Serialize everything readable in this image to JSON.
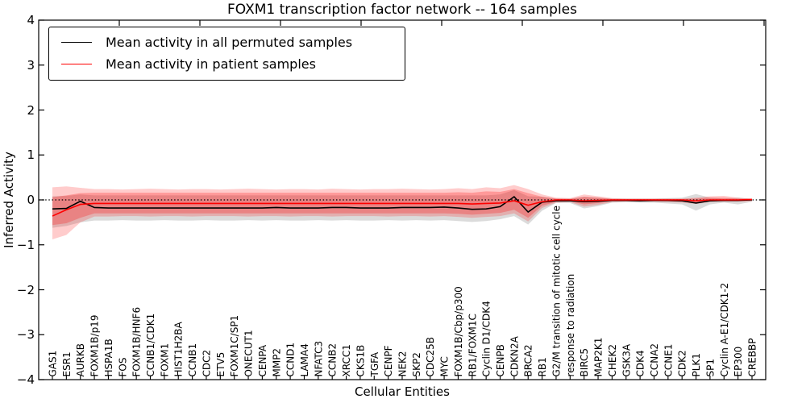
{
  "figure": {
    "title": "FOXM1 transcription factor network -- 164 samples",
    "xlabel": "Cellular Entities",
    "ylabel": "Inferred Activity"
  },
  "legend": {
    "items": [
      {
        "label": "Mean activity in all permuted samples",
        "color": "#000000"
      },
      {
        "label": "Mean activity in patient samples",
        "color": "#ff0000"
      }
    ]
  },
  "chart_data": {
    "type": "line",
    "title": "FOXM1 transcription factor network -- 164 samples",
    "xlabel": "Cellular Entities",
    "ylabel": "Inferred Activity",
    "ylim": [
      -4,
      4
    ],
    "grid": false,
    "legend_position": "upper left",
    "zero_line": {
      "y": 0,
      "style": "dotted",
      "color": "#000000"
    },
    "yticks": {
      "values": [
        4,
        3,
        2,
        1,
        0,
        -1,
        -2,
        -3,
        -4
      ],
      "labels": [
        "4",
        "3",
        "2",
        "1",
        "0",
        "−1",
        "−2",
        "−3",
        "−4"
      ]
    },
    "categories": [
      "GAS1",
      "ESR1",
      "AURKB",
      "FOXM1B/p19",
      "HSPA1B",
      "FOS",
      "FOXM1B/HNF6",
      "CCNB1/CDK1",
      "FOXM1",
      "HIST1H2BA",
      "CCNB1",
      "CDC2",
      "ETV5",
      "FOXM1C/SP1",
      "ONECUT1",
      "CENPA",
      "MMP2",
      "CCND1",
      "LAMA4",
      "NFATC3",
      "CCNB2",
      "XRCC1",
      "CKS1B",
      "TGFA",
      "CENPF",
      "NEK2",
      "SKP2",
      "CDC25B",
      "MYC",
      "FOXM1B/Cbp/p300",
      "RB1/FOXM1C",
      "Cyclin D1/CDK4",
      "CENPB",
      "CDKN2A",
      "BRCA2",
      "RB1",
      "G2/M transition of mitotic cell cycle",
      "response to radiation",
      "BIRC5",
      "MAP2K1",
      "CHEK2",
      "GSK3A",
      "CDK4",
      "CCNA2",
      "CCNE1",
      "CDK2",
      "PLK1",
      "SP1",
      "Cyclin A-E1/CDK1-2",
      "EP300",
      "CREBBP"
    ],
    "series": [
      {
        "name": "Mean activity in all permuted samples",
        "color": "#000000",
        "values": [
          -0.2,
          -0.19,
          -0.03,
          -0.17,
          -0.18,
          -0.18,
          -0.18,
          -0.18,
          -0.18,
          -0.18,
          -0.18,
          -0.18,
          -0.18,
          -0.18,
          -0.18,
          -0.18,
          -0.17,
          -0.18,
          -0.18,
          -0.18,
          -0.17,
          -0.17,
          -0.18,
          -0.18,
          -0.18,
          -0.17,
          -0.17,
          -0.17,
          -0.16,
          -0.18,
          -0.21,
          -0.2,
          -0.15,
          0.07,
          -0.27,
          -0.05,
          -0.02,
          -0.02,
          -0.04,
          -0.03,
          -0.01,
          -0.01,
          -0.02,
          -0.01,
          -0.01,
          -0.02,
          -0.07,
          -0.02,
          -0.01,
          -0.01,
          0
        ]
      },
      {
        "name": "Mean activity in patient samples",
        "color": "#ff0000",
        "values": [
          -0.36,
          -0.22,
          -0.1,
          -0.08,
          -0.08,
          -0.08,
          -0.08,
          -0.08,
          -0.08,
          -0.08,
          -0.08,
          -0.08,
          -0.08,
          -0.08,
          -0.08,
          -0.08,
          -0.08,
          -0.08,
          -0.08,
          -0.08,
          -0.08,
          -0.08,
          -0.08,
          -0.08,
          -0.08,
          -0.08,
          -0.08,
          -0.08,
          -0.08,
          -0.08,
          -0.09,
          -0.08,
          -0.07,
          -0.02,
          -0.12,
          -0.04,
          0,
          0,
          -0.02,
          -0.01,
          0,
          0,
          0,
          0,
          0,
          0,
          -0.02,
          0,
          0,
          0,
          0.01
        ]
      }
    ],
    "bands": [
      {
        "name": "permuted-std-band",
        "color": "#999999",
        "opacity": 0.35,
        "upper": [
          0.08,
          0.09,
          0.12,
          0.1,
          0.1,
          0.1,
          0.1,
          0.1,
          0.1,
          0.1,
          0.1,
          0.1,
          0.1,
          0.1,
          0.1,
          0.1,
          0.1,
          0.1,
          0.1,
          0.1,
          0.1,
          0.1,
          0.1,
          0.1,
          0.1,
          0.1,
          0.1,
          0.1,
          0.1,
          0.1,
          0.1,
          0.1,
          0.12,
          0.22,
          0.08,
          0.07,
          0.03,
          0.03,
          0.07,
          0.05,
          0.03,
          0.03,
          0.03,
          0.03,
          0.04,
          0.05,
          0.13,
          0.05,
          0.03,
          0.05,
          0.02
        ],
        "lower": [
          -0.62,
          -0.58,
          -0.5,
          -0.46,
          -0.46,
          -0.45,
          -0.46,
          -0.46,
          -0.45,
          -0.46,
          -0.46,
          -0.45,
          -0.46,
          -0.46,
          -0.45,
          -0.46,
          -0.45,
          -0.46,
          -0.46,
          -0.45,
          -0.46,
          -0.45,
          -0.46,
          -0.46,
          -0.45,
          -0.46,
          -0.45,
          -0.46,
          -0.45,
          -0.47,
          -0.49,
          -0.47,
          -0.43,
          -0.36,
          -0.55,
          -0.24,
          -0.07,
          -0.07,
          -0.19,
          -0.14,
          -0.06,
          -0.05,
          -0.06,
          -0.06,
          -0.08,
          -0.1,
          -0.24,
          -0.1,
          -0.06,
          -0.1,
          -0.04
        ]
      },
      {
        "name": "patient-std-outer-band",
        "color": "#ff0000",
        "opacity": 0.2,
        "upper": [
          0.28,
          0.3,
          0.27,
          0.24,
          0.24,
          0.23,
          0.24,
          0.25,
          0.24,
          0.23,
          0.24,
          0.24,
          0.23,
          0.24,
          0.25,
          0.24,
          0.23,
          0.24,
          0.24,
          0.23,
          0.25,
          0.24,
          0.23,
          0.24,
          0.24,
          0.25,
          0.24,
          0.23,
          0.24,
          0.26,
          0.24,
          0.28,
          0.26,
          0.33,
          0.24,
          0.12,
          0.05,
          0.04,
          0.12,
          0.08,
          0.04,
          0.03,
          0.03,
          0.03,
          0.03,
          0.03,
          0.05,
          0.08,
          0.09,
          0.05,
          0.03
        ],
        "lower": [
          -0.88,
          -0.78,
          -0.5,
          -0.37,
          -0.37,
          -0.36,
          -0.36,
          -0.37,
          -0.36,
          -0.36,
          -0.37,
          -0.36,
          -0.36,
          -0.36,
          -0.37,
          -0.36,
          -0.36,
          -0.37,
          -0.36,
          -0.36,
          -0.37,
          -0.36,
          -0.36,
          -0.36,
          -0.37,
          -0.36,
          -0.36,
          -0.37,
          -0.36,
          -0.38,
          -0.4,
          -0.38,
          -0.36,
          -0.3,
          -0.48,
          -0.18,
          -0.06,
          -0.05,
          -0.15,
          -0.11,
          -0.05,
          -0.04,
          -0.04,
          -0.04,
          -0.05,
          -0.06,
          -0.09,
          -0.05,
          -0.04,
          -0.04,
          -0.03
        ]
      },
      {
        "name": "patient-std-inner-band",
        "color": "#ff0000",
        "opacity": 0.25,
        "upper": [
          0.06,
          0.1,
          0.15,
          0.16,
          0.16,
          0.16,
          0.16,
          0.16,
          0.16,
          0.16,
          0.16,
          0.16,
          0.16,
          0.16,
          0.16,
          0.16,
          0.16,
          0.16,
          0.16,
          0.16,
          0.16,
          0.16,
          0.16,
          0.16,
          0.16,
          0.16,
          0.16,
          0.16,
          0.16,
          0.17,
          0.16,
          0.19,
          0.18,
          0.24,
          0.15,
          0.07,
          0.03,
          0.02,
          0.07,
          0.05,
          0.02,
          0.02,
          0.02,
          0.02,
          0.02,
          0.02,
          0.03,
          0.05,
          0.05,
          0.03,
          0.02
        ],
        "lower": [
          -0.56,
          -0.52,
          -0.4,
          -0.3,
          -0.3,
          -0.3,
          -0.3,
          -0.3,
          -0.3,
          -0.3,
          -0.3,
          -0.3,
          -0.3,
          -0.3,
          -0.3,
          -0.3,
          -0.3,
          -0.3,
          -0.3,
          -0.3,
          -0.3,
          -0.3,
          -0.3,
          -0.3,
          -0.3,
          -0.3,
          -0.3,
          -0.3,
          -0.3,
          -0.31,
          -0.33,
          -0.31,
          -0.29,
          -0.22,
          -0.4,
          -0.13,
          -0.04,
          -0.03,
          -0.1,
          -0.07,
          -0.03,
          -0.03,
          -0.03,
          -0.03,
          -0.03,
          -0.04,
          -0.06,
          -0.03,
          -0.03,
          -0.03,
          -0.02
        ]
      }
    ]
  }
}
